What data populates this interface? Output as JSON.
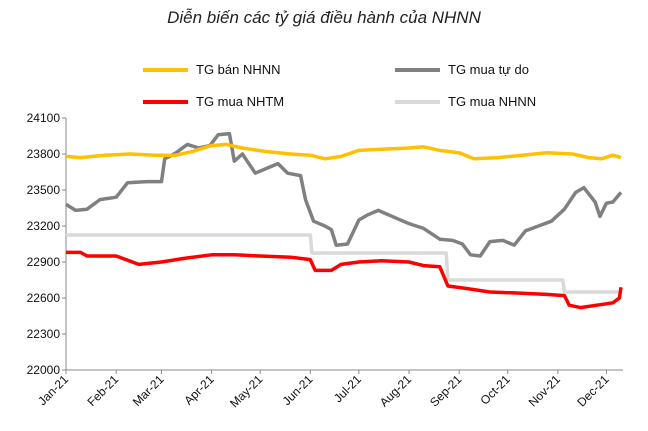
{
  "chart_data": {
    "type": "line",
    "title": "Diễn biến các tỷ giá điều hành của NHNN",
    "xlabel": "",
    "ylabel": "",
    "x_range": [
      "2021-01-01",
      "2021-12-10"
    ],
    "ylim": [
      22000,
      24100
    ],
    "y_ticks": [
      22000,
      22300,
      22600,
      22900,
      23200,
      23500,
      23800,
      24100
    ],
    "x_ticks": [
      {
        "date": "2021-01-01",
        "label": "Jan-21"
      },
      {
        "date": "2021-02-01",
        "label": "Feb-21"
      },
      {
        "date": "2021-03-01",
        "label": "Mar-21"
      },
      {
        "date": "2021-04-01",
        "label": "Apr-21"
      },
      {
        "date": "2021-05-01",
        "label": "May-21"
      },
      {
        "date": "2021-06-01",
        "label": "Jun-21"
      },
      {
        "date": "2021-07-01",
        "label": "Jul-21"
      },
      {
        "date": "2021-08-01",
        "label": "Aug-21"
      },
      {
        "date": "2021-09-01",
        "label": "Sep-21"
      },
      {
        "date": "2021-10-01",
        "label": "Oct-21"
      },
      {
        "date": "2021-11-01",
        "label": "Nov-21"
      },
      {
        "date": "2021-12-01",
        "label": "Dec-21"
      }
    ],
    "grid": false,
    "legend_position": "top",
    "series": [
      {
        "name": "TG bán NHNN",
        "color": "#FFC000",
        "points": [
          [
            "2021-01-01",
            23780
          ],
          [
            "2021-01-10",
            23770
          ],
          [
            "2021-01-25",
            23790
          ],
          [
            "2021-02-10",
            23800
          ],
          [
            "2021-02-25",
            23790
          ],
          [
            "2021-03-10",
            23790
          ],
          [
            "2021-03-20",
            23820
          ],
          [
            "2021-04-01",
            23870
          ],
          [
            "2021-04-10",
            23880
          ],
          [
            "2021-04-20",
            23850
          ],
          [
            "2021-05-05",
            23820
          ],
          [
            "2021-05-20",
            23800
          ],
          [
            "2021-06-01",
            23790
          ],
          [
            "2021-06-10",
            23760
          ],
          [
            "2021-06-20",
            23780
          ],
          [
            "2021-07-01",
            23830
          ],
          [
            "2021-07-15",
            23840
          ],
          [
            "2021-08-01",
            23850
          ],
          [
            "2021-08-10",
            23860
          ],
          [
            "2021-08-20",
            23830
          ],
          [
            "2021-09-01",
            23810
          ],
          [
            "2021-09-10",
            23760
          ],
          [
            "2021-09-25",
            23770
          ],
          [
            "2021-10-10",
            23790
          ],
          [
            "2021-10-25",
            23810
          ],
          [
            "2021-11-10",
            23800
          ],
          [
            "2021-11-20",
            23770
          ],
          [
            "2021-11-28",
            23760
          ],
          [
            "2021-12-05",
            23790
          ],
          [
            "2021-12-10",
            23770
          ]
        ]
      },
      {
        "name": "TG mua tự do",
        "color": "#808080",
        "points": [
          [
            "2021-01-01",
            23380
          ],
          [
            "2021-01-07",
            23330
          ],
          [
            "2021-01-14",
            23340
          ],
          [
            "2021-01-22",
            23420
          ],
          [
            "2021-02-01",
            23440
          ],
          [
            "2021-02-08",
            23560
          ],
          [
            "2021-02-20",
            23570
          ],
          [
            "2021-03-01",
            23570
          ],
          [
            "2021-03-03",
            23760
          ],
          [
            "2021-03-10",
            23810
          ],
          [
            "2021-03-17",
            23880
          ],
          [
            "2021-03-24",
            23850
          ],
          [
            "2021-03-31",
            23870
          ],
          [
            "2021-04-05",
            23960
          ],
          [
            "2021-04-12",
            23970
          ],
          [
            "2021-04-15",
            23740
          ],
          [
            "2021-04-20",
            23800
          ],
          [
            "2021-04-28",
            23640
          ],
          [
            "2021-05-05",
            23680
          ],
          [
            "2021-05-12",
            23720
          ],
          [
            "2021-05-18",
            23640
          ],
          [
            "2021-05-26",
            23620
          ],
          [
            "2021-05-29",
            23420
          ],
          [
            "2021-06-03",
            23240
          ],
          [
            "2021-06-10",
            23200
          ],
          [
            "2021-06-14",
            23170
          ],
          [
            "2021-06-17",
            23040
          ],
          [
            "2021-06-24",
            23050
          ],
          [
            "2021-07-01",
            23250
          ],
          [
            "2021-07-06",
            23290
          ],
          [
            "2021-07-13",
            23330
          ],
          [
            "2021-07-25",
            23260
          ],
          [
            "2021-08-01",
            23220
          ],
          [
            "2021-08-10",
            23180
          ],
          [
            "2021-08-20",
            23090
          ],
          [
            "2021-08-28",
            23080
          ],
          [
            "2021-09-03",
            23050
          ],
          [
            "2021-09-08",
            22960
          ],
          [
            "2021-09-14",
            22950
          ],
          [
            "2021-09-20",
            23070
          ],
          [
            "2021-09-28",
            23080
          ],
          [
            "2021-10-05",
            23040
          ],
          [
            "2021-10-12",
            23160
          ],
          [
            "2021-10-20",
            23200
          ],
          [
            "2021-10-28",
            23240
          ],
          [
            "2021-11-05",
            23340
          ],
          [
            "2021-11-12",
            23480
          ],
          [
            "2021-11-17",
            23520
          ],
          [
            "2021-11-24",
            23400
          ],
          [
            "2021-11-27",
            23280
          ],
          [
            "2021-12-01",
            23390
          ],
          [
            "2021-12-05",
            23400
          ],
          [
            "2021-12-10",
            23480
          ]
        ]
      },
      {
        "name": "TG mua NHTM",
        "color": "#FF0000",
        "points": [
          [
            "2021-01-01",
            22980
          ],
          [
            "2021-01-10",
            22980
          ],
          [
            "2021-01-14",
            22950
          ],
          [
            "2021-02-01",
            22950
          ],
          [
            "2021-02-15",
            22880
          ],
          [
            "2021-03-01",
            22900
          ],
          [
            "2021-03-15",
            22930
          ],
          [
            "2021-04-01",
            22960
          ],
          [
            "2021-04-15",
            22960
          ],
          [
            "2021-05-01",
            22950
          ],
          [
            "2021-05-20",
            22940
          ],
          [
            "2021-06-01",
            22920
          ],
          [
            "2021-06-04",
            22830
          ],
          [
            "2021-06-14",
            22830
          ],
          [
            "2021-06-20",
            22880
          ],
          [
            "2021-07-01",
            22900
          ],
          [
            "2021-07-15",
            22910
          ],
          [
            "2021-08-01",
            22900
          ],
          [
            "2021-08-10",
            22870
          ],
          [
            "2021-08-20",
            22860
          ],
          [
            "2021-08-25",
            22700
          ],
          [
            "2021-09-05",
            22680
          ],
          [
            "2021-09-20",
            22650
          ],
          [
            "2021-10-10",
            22640
          ],
          [
            "2021-10-25",
            22630
          ],
          [
            "2021-11-05",
            22620
          ],
          [
            "2021-11-08",
            22540
          ],
          [
            "2021-11-15",
            22520
          ],
          [
            "2021-11-25",
            22540
          ],
          [
            "2021-12-05",
            22560
          ],
          [
            "2021-12-09",
            22600
          ],
          [
            "2021-12-10",
            22690
          ]
        ]
      },
      {
        "name": "TG mua NHNN",
        "color": "#D9D9D9",
        "points": [
          [
            "2021-01-01",
            23125
          ],
          [
            "2021-06-01",
            23125
          ],
          [
            "2021-06-02",
            22975
          ],
          [
            "2021-08-24",
            22975
          ],
          [
            "2021-08-25",
            22750
          ],
          [
            "2021-11-04",
            22750
          ],
          [
            "2021-11-05",
            22650
          ],
          [
            "2021-12-10",
            22650
          ]
        ]
      }
    ]
  }
}
